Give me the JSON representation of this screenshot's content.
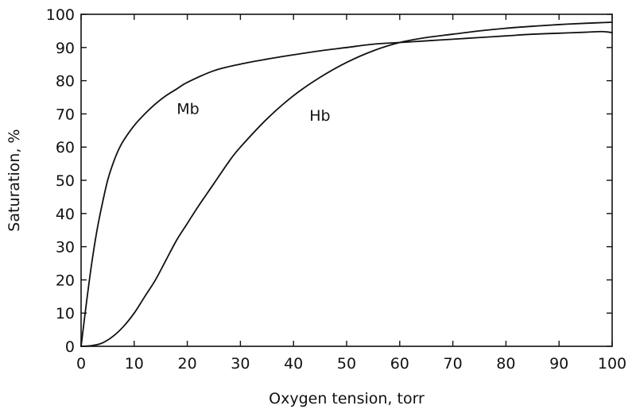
{
  "chart_data": {
    "type": "line",
    "title": "",
    "xlabel": "Oxygen tension, torr",
    "ylabel": "Saturation, %",
    "xlim": [
      0,
      100
    ],
    "ylim": [
      0,
      100
    ],
    "grid": false,
    "legend": "none",
    "xticks": [
      0,
      10,
      20,
      30,
      40,
      50,
      60,
      70,
      80,
      90,
      100
    ],
    "yticks": [
      0,
      10,
      20,
      30,
      40,
      50,
      60,
      70,
      80,
      90,
      100
    ],
    "series": [
      {
        "name": "Mb",
        "color": "#111111",
        "x": [
          0,
          1,
          2,
          3,
          4,
          5,
          6,
          7,
          8,
          10,
          12,
          14,
          16,
          18,
          20,
          25,
          30,
          35,
          40,
          45,
          50,
          55,
          60,
          65,
          70,
          75,
          80,
          85,
          90,
          95,
          98,
          100
        ],
        "y": [
          0,
          13,
          25,
          35,
          43,
          50,
          55,
          59,
          62,
          66.5,
          70,
          73,
          75.5,
          77.5,
          79.5,
          83,
          85,
          86.5,
          87.8,
          89,
          90,
          91,
          91.5,
          92,
          92.5,
          93,
          93.5,
          94,
          94.3,
          94.6,
          94.8,
          94.5
        ]
      },
      {
        "name": "Hb",
        "color": "#111111",
        "x": [
          0,
          2,
          4,
          6,
          8,
          10,
          12,
          14,
          16,
          18,
          20,
          22,
          25,
          28,
          30,
          35,
          40,
          45,
          50,
          55,
          60,
          65,
          70,
          75,
          80,
          85,
          90,
          95,
          100
        ],
        "y": [
          0,
          0.2,
          1,
          3,
          6,
          10,
          15,
          20,
          26,
          32,
          37,
          42,
          49,
          56,
          60,
          68.5,
          75.5,
          81,
          85.5,
          89,
          91.5,
          93,
          94,
          95,
          95.8,
          96.4,
          96.9,
          97.3,
          97.6
        ]
      }
    ],
    "annotations": [
      {
        "text": "Mb",
        "x": 18,
        "y": 70
      },
      {
        "text": "Hb",
        "x": 43,
        "y": 68
      }
    ]
  }
}
